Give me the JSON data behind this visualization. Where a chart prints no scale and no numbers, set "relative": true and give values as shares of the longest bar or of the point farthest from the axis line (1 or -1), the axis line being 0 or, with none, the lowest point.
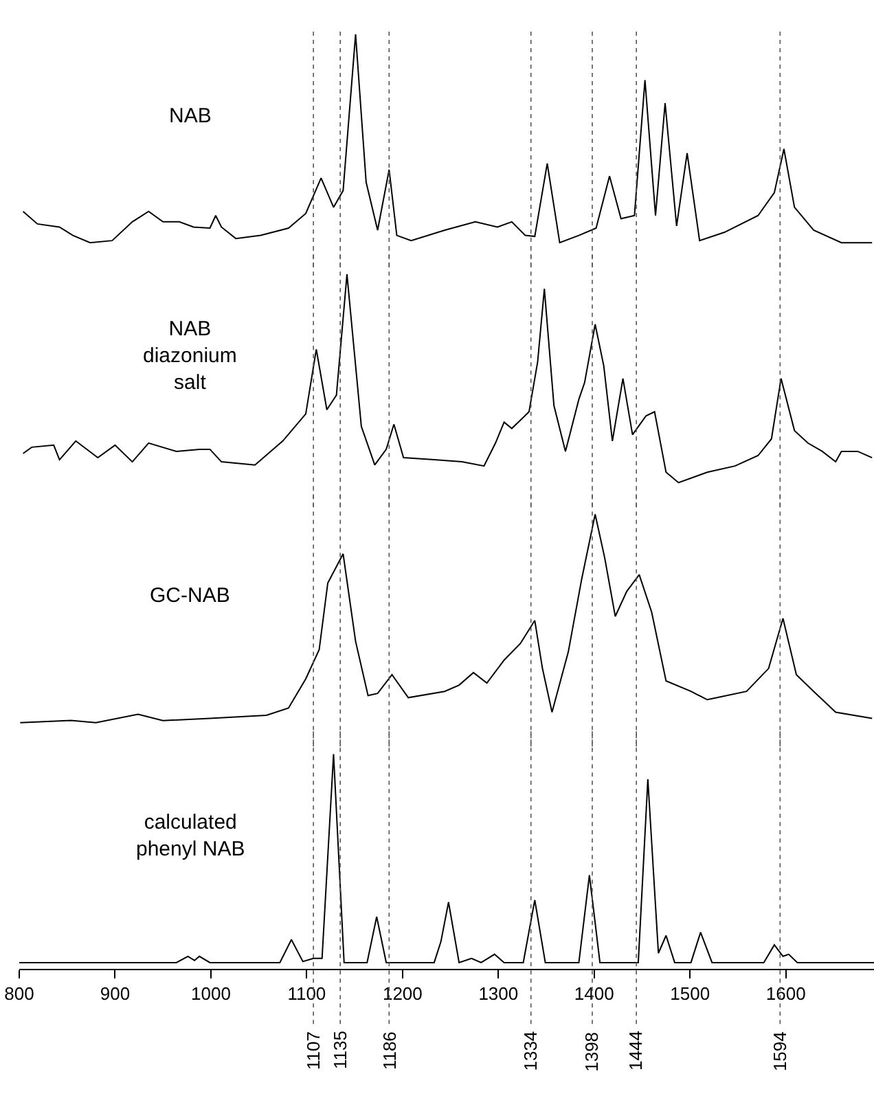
{
  "chart_data": [
    {
      "type": "line",
      "relative": true,
      "xlim": [
        800,
        1692
      ],
      "xticks": [
        800,
        900,
        1000,
        1100,
        1200,
        1300,
        1400,
        1500,
        1600
      ],
      "tick_labels": false,
      "series": [
        {
          "name": "NAB",
          "color": "#000000",
          "x": [
            804,
            819,
            842,
            856,
            874,
            897,
            918,
            935,
            950,
            967,
            982,
            999,
            1005,
            1011,
            1026,
            1052,
            1081,
            1099,
            1115,
            1128,
            1138,
            1151,
            1162,
            1174,
            1186,
            1194,
            1209,
            1244,
            1276,
            1299,
            1314,
            1328,
            1338,
            1351,
            1364,
            1384,
            1402,
            1416,
            1428,
            1442,
            1453,
            1464,
            1474,
            1486,
            1497,
            1510,
            1536,
            1571,
            1588,
            1598,
            1609,
            1629,
            1658,
            1690
          ],
          "values": [
            0.15,
            0.09,
            0.075,
            0.035,
            0,
            0.01,
            0.1,
            0.15,
            0.1,
            0.1,
            0.075,
            0.07,
            0.13,
            0.075,
            0.02,
            0.035,
            0.07,
            0.14,
            0.31,
            0.17,
            0.25,
            1.0,
            0.29,
            0.06,
            0.35,
            0.035,
            0.01,
            0.06,
            0.1,
            0.075,
            0.1,
            0.035,
            0.03,
            0.38,
            0,
            0.035,
            0.07,
            0.32,
            0.115,
            0.13,
            0.78,
            0.13,
            0.67,
            0.08,
            0.43,
            0.01,
            0.05,
            0.13,
            0.24,
            0.45,
            0.17,
            0.06,
            0,
            0
          ]
        }
      ],
      "ref_lines": [
        {
          "axis": "x",
          "value": 1107,
          "line_style": "dotted"
        },
        {
          "axis": "x",
          "value": 1135,
          "line_style": "dotted"
        },
        {
          "axis": "x",
          "value": 1186,
          "line_style": "dotted"
        },
        {
          "axis": "x",
          "value": 1334,
          "line_style": "dotted"
        },
        {
          "axis": "x",
          "value": 1398,
          "line_style": "dotted"
        },
        {
          "axis": "x",
          "value": 1444,
          "line_style": "dotted"
        },
        {
          "axis": "x",
          "value": 1594,
          "line_style": "dotted"
        }
      ]
    },
    {
      "type": "line",
      "relative": true,
      "xlim": [
        800,
        1692
      ],
      "xticks": [
        800,
        900,
        1000,
        1100,
        1200,
        1300,
        1400,
        1500,
        1600
      ],
      "tick_labels": false,
      "series": [
        {
          "name": "NAB\ndiazonium\nsalt",
          "color": "#000000",
          "x": [
            804,
            813,
            836,
            842,
            859,
            882,
            900,
            918,
            935,
            964,
            988,
            999,
            1011,
            1046,
            1075,
            1099,
            1110,
            1121,
            1131,
            1142,
            1157,
            1171,
            1183,
            1191,
            1201,
            1233,
            1262,
            1285,
            1297,
            1306,
            1314,
            1332,
            1341,
            1348,
            1358,
            1370,
            1384,
            1390,
            1401,
            1410,
            1419,
            1430,
            1440,
            1454,
            1463,
            1475,
            1488,
            1518,
            1547,
            1571,
            1585,
            1595,
            1609,
            1623,
            1638,
            1652,
            1658,
            1675,
            1690
          ],
          "values": [
            0.14,
            0.17,
            0.18,
            0.11,
            0.2,
            0.12,
            0.18,
            0.1,
            0.19,
            0.15,
            0.16,
            0.16,
            0.1,
            0.085,
            0.2,
            0.33,
            0.64,
            0.35,
            0.42,
            1.0,
            0.27,
            0.085,
            0.16,
            0.28,
            0.12,
            0.11,
            0.1,
            0.08,
            0.19,
            0.29,
            0.26,
            0.34,
            0.58,
            0.93,
            0.37,
            0.15,
            0.4,
            0.48,
            0.76,
            0.56,
            0.2,
            0.5,
            0.23,
            0.32,
            0.34,
            0.05,
            0,
            0.05,
            0.08,
            0.13,
            0.21,
            0.5,
            0.25,
            0.19,
            0.15,
            0.1,
            0.15,
            0.15,
            0.12
          ]
        }
      ],
      "ref_lines": [
        {
          "axis": "x",
          "value": 1107,
          "line_style": "dotted"
        },
        {
          "axis": "x",
          "value": 1135,
          "line_style": "dotted"
        },
        {
          "axis": "x",
          "value": 1186,
          "line_style": "dotted"
        },
        {
          "axis": "x",
          "value": 1334,
          "line_style": "dotted"
        },
        {
          "axis": "x",
          "value": 1398,
          "line_style": "dotted"
        },
        {
          "axis": "x",
          "value": 1444,
          "line_style": "dotted"
        },
        {
          "axis": "x",
          "value": 1594,
          "line_style": "dotted"
        }
      ]
    },
    {
      "type": "line",
      "relative": true,
      "xlim": [
        800,
        1692
      ],
      "xticks": [
        800,
        900,
        1000,
        1100,
        1200,
        1300,
        1400,
        1500,
        1600
      ],
      "tick_labels": false,
      "series": [
        {
          "name": "GC-NAB",
          "color": "#000000",
          "x": [
            801,
            854,
            880,
            924,
            950,
            999,
            1058,
            1081,
            1099,
            1113,
            1122,
            1138,
            1151,
            1164,
            1174,
            1189,
            1206,
            1244,
            1259,
            1274,
            1288,
            1306,
            1323,
            1338,
            1346,
            1356,
            1373,
            1387,
            1401,
            1411,
            1422,
            1434,
            1447,
            1460,
            1475,
            1501,
            1518,
            1559,
            1582,
            1597,
            1611,
            1629,
            1652,
            1690
          ],
          "values": [
            0,
            0.01,
            0,
            0.04,
            0.01,
            0.02,
            0.035,
            0.07,
            0.21,
            0.35,
            0.67,
            0.81,
            0.39,
            0.13,
            0.14,
            0.23,
            0.12,
            0.15,
            0.18,
            0.24,
            0.19,
            0.3,
            0.38,
            0.49,
            0.26,
            0.05,
            0.34,
            0.69,
            1.0,
            0.79,
            0.51,
            0.63,
            0.71,
            0.53,
            0.2,
            0.15,
            0.11,
            0.15,
            0.26,
            0.5,
            0.23,
            0.15,
            0.05,
            0.02
          ]
        }
      ],
      "ref_lines": [
        {
          "axis": "x",
          "value": 1107,
          "line_style": "dotted"
        },
        {
          "axis": "x",
          "value": 1135,
          "line_style": "dotted"
        },
        {
          "axis": "x",
          "value": 1186,
          "line_style": "dotted"
        },
        {
          "axis": "x",
          "value": 1334,
          "line_style": "dotted"
        },
        {
          "axis": "x",
          "value": 1398,
          "line_style": "dotted"
        },
        {
          "axis": "x",
          "value": 1444,
          "line_style": "dotted"
        },
        {
          "axis": "x",
          "value": 1594,
          "line_style": "dotted"
        }
      ]
    },
    {
      "type": "line",
      "relative": true,
      "xlim": [
        800,
        1692
      ],
      "xticks": [
        800,
        900,
        1000,
        1100,
        1200,
        1300,
        1400,
        1500,
        1600
      ],
      "tick_labels": "x",
      "series": [
        {
          "name": "calculated\nphenyl NAB",
          "color": "#000000",
          "x": [
            800,
            964,
            976,
            983,
            988,
            999,
            1072,
            1084,
            1096,
            1107,
            1116,
            1128,
            1139,
            1163,
            1173,
            1183,
            1233,
            1240,
            1248,
            1259,
            1272,
            1282,
            1296,
            1306,
            1326,
            1338,
            1349,
            1384,
            1395,
            1406,
            1446,
            1456,
            1467,
            1475,
            1484,
            1501,
            1511,
            1523,
            1577,
            1588,
            1597,
            1603,
            1612,
            1692
          ],
          "values": [
            0,
            0,
            0.03,
            0.01,
            0.03,
            0,
            0,
            0.11,
            0.005,
            0.02,
            0.02,
            1.0,
            0,
            0,
            0.22,
            0,
            0,
            0.1,
            0.29,
            0,
            0.02,
            0,
            0.04,
            0,
            0,
            0.3,
            0,
            0,
            0.42,
            0,
            0,
            0.88,
            0.045,
            0.13,
            0,
            0,
            0.145,
            0,
            0,
            0.085,
            0.03,
            0.04,
            0,
            0
          ]
        }
      ],
      "ref_lines": [
        {
          "axis": "x",
          "value": 1107,
          "label": "1107",
          "line_style": "dotted"
        },
        {
          "axis": "x",
          "value": 1135,
          "label": "1135",
          "line_style": "dotted"
        },
        {
          "axis": "x",
          "value": 1186,
          "label": "1186",
          "line_style": "dotted"
        },
        {
          "axis": "x",
          "value": 1334,
          "label": "1334",
          "line_style": "dotted"
        },
        {
          "axis": "x",
          "value": 1398,
          "label": "1398",
          "line_style": "dotted"
        },
        {
          "axis": "x",
          "value": 1444,
          "label": "1444",
          "line_style": "dotted"
        },
        {
          "axis": "x",
          "value": 1594,
          "label": "1594",
          "line_style": "dotted"
        }
      ]
    }
  ]
}
